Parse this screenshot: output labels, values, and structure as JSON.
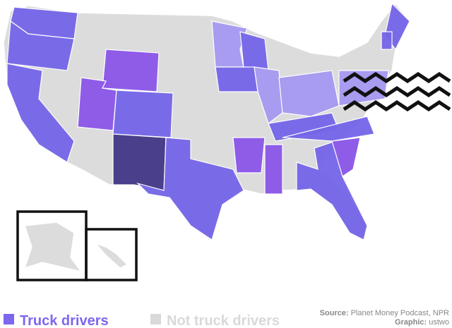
{
  "legend": [
    {
      "label": "Truck drivers",
      "color": "#7b68ee"
    },
    {
      "label": "Not truck drivers",
      "color": "#d9d9d9"
    }
  ],
  "source": {
    "label": "Source:",
    "text": "Planet Money Podcast, NPR"
  },
  "credit": {
    "label": "Graphic:",
    "text": "ustwo"
  }
}
